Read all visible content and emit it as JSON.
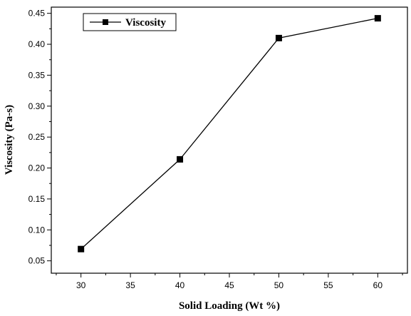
{
  "chart_data": {
    "type": "line",
    "xlabel": "Solid Loading (Wt %)",
    "ylabel": "Viscosity (Pa-s)",
    "xlim": [
      27,
      63
    ],
    "ylim": [
      0.03,
      0.46
    ],
    "x_ticks": [
      30,
      35,
      40,
      45,
      50,
      55,
      60
    ],
    "x_tick_labels": [
      "30",
      "35",
      "40",
      "45",
      "50",
      "55",
      "60"
    ],
    "y_ticks": [
      0.05,
      0.1,
      0.15,
      0.2,
      0.25,
      0.3,
      0.35,
      0.4,
      0.45
    ],
    "y_tick_labels": [
      "0.05",
      "0.10",
      "0.15",
      "0.20",
      "0.25",
      "0.30",
      "0.35",
      "0.40",
      "0.45"
    ],
    "grid": false,
    "legend_position": "top-left",
    "series": [
      {
        "name": "Viscosity",
        "marker": "square",
        "color": "#000000",
        "x": [
          30,
          40,
          50,
          60
        ],
        "values": [
          0.069,
          0.214,
          0.41,
          0.442
        ]
      }
    ]
  }
}
